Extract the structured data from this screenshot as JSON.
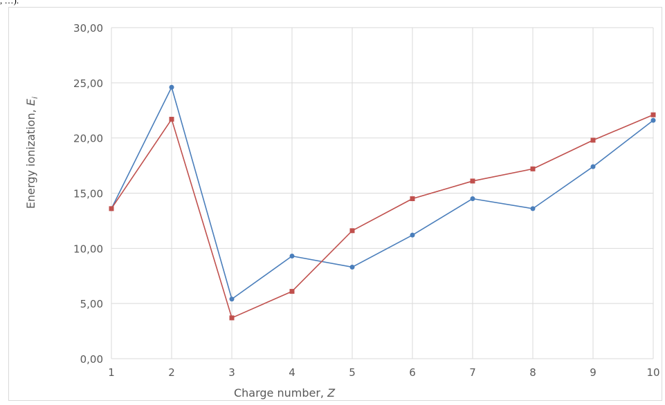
{
  "corner_fragment": ", …).",
  "chart_data": {
    "type": "line",
    "x": [
      1,
      2,
      3,
      4,
      5,
      6,
      7,
      8,
      9,
      10
    ],
    "series": [
      {
        "color": "#4a7ebb",
        "marker": "circle",
        "values": [
          13.6,
          24.6,
          5.4,
          9.3,
          8.3,
          11.2,
          14.5,
          13.6,
          17.4,
          21.6
        ]
      },
      {
        "color": "#c0504d",
        "marker": "square",
        "values": [
          13.6,
          21.7,
          3.7,
          6.1,
          11.6,
          14.5,
          16.1,
          17.2,
          19.8,
          22.1
        ]
      }
    ],
    "xlabel": "Charge number, Z",
    "ylabel": "Energy ionization, E",
    "ylabel_subscript": "i",
    "xlim": [
      1,
      10
    ],
    "ylim": [
      0,
      30
    ],
    "ytick_values": [
      0,
      5,
      10,
      15,
      20,
      25,
      30
    ],
    "ytick_labels": [
      "0,00",
      "5,00",
      "10,00",
      "15,00",
      "20,00",
      "25,00",
      "30,00"
    ],
    "xtick_labels": [
      "1",
      "2",
      "3",
      "4",
      "5",
      "6",
      "7",
      "8",
      "9",
      "10"
    ],
    "grid": true,
    "legend": "none"
  }
}
